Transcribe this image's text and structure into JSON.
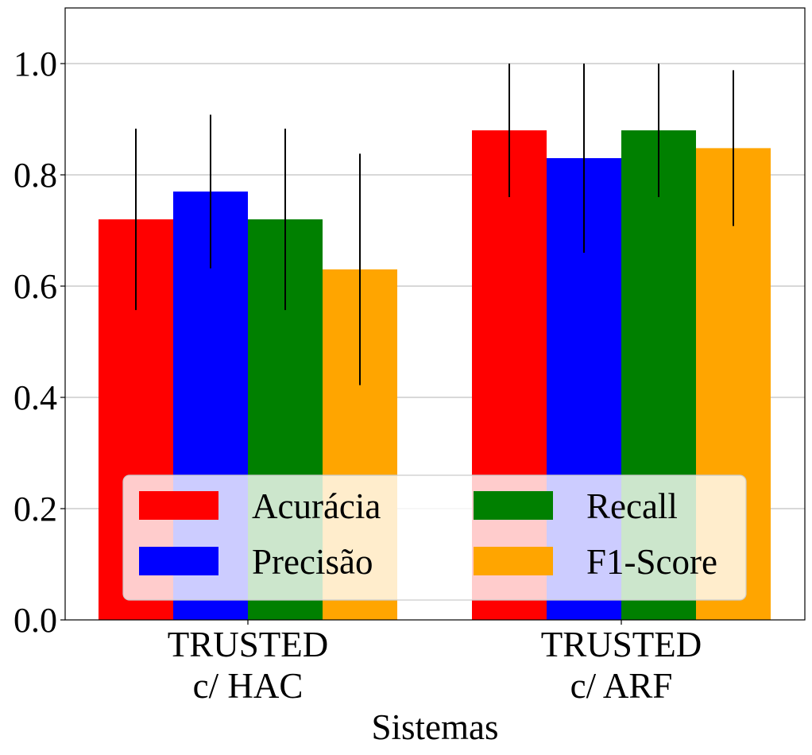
{
  "chart_data": {
    "type": "bar",
    "categories": [
      [
        "TRUSTED",
        "c/ HAC"
      ],
      [
        "TRUSTED",
        "c/ ARF"
      ]
    ],
    "series": [
      {
        "name": "Acurácia",
        "color": "#ff0000",
        "values": [
          0.72,
          0.88
        ],
        "errors": [
          0.163,
          0.12
        ]
      },
      {
        "name": "Precisão",
        "color": "#0000ff",
        "values": [
          0.77,
          0.83
        ],
        "errors": [
          0.138,
          0.17
        ]
      },
      {
        "name": "Recall",
        "color": "#008000",
        "values": [
          0.72,
          0.88
        ],
        "errors": [
          0.163,
          0.12
        ]
      },
      {
        "name": "F1-Score",
        "color": "#ffa500",
        "values": [
          0.63,
          0.848
        ],
        "errors": [
          0.208,
          0.14
        ]
      }
    ],
    "xlabel": "Sistemas",
    "ylabel": "",
    "ylim": [
      0,
      1.1
    ],
    "yticks": [
      "0.0",
      "0.2",
      "0.4",
      "0.6",
      "0.8",
      "1.0"
    ],
    "grid": "horizontal",
    "legend_position": "lower-center",
    "legend_columns": 2
  }
}
